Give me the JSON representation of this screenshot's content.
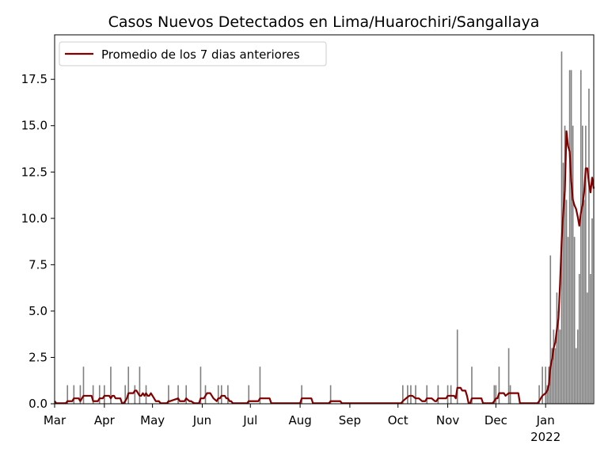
{
  "chart_data": {
    "type": "bar",
    "title": "Casos Nuevos Detectados en Lima/Huarochiri/Sangallaya",
    "xlabel": "",
    "ylabel": "",
    "x_range": [
      "2021-03-01",
      "2022-01-31"
    ],
    "ylim": [
      0,
      19.9
    ],
    "grid": false,
    "legend_placement": "top-left",
    "yticks": [
      {
        "value": 0.0,
        "label": "0.0"
      },
      {
        "value": 2.5,
        "label": "2.5"
      },
      {
        "value": 5.0,
        "label": "5.0"
      },
      {
        "value": 7.5,
        "label": "7.5"
      },
      {
        "value": 10.0,
        "label": "10.0"
      },
      {
        "value": 12.5,
        "label": "12.5"
      },
      {
        "value": 15.0,
        "label": "15.0"
      },
      {
        "value": 17.5,
        "label": "17.5"
      }
    ],
    "xticks": [
      {
        "date": "2021-03-01",
        "label": "Mar"
      },
      {
        "date": "2021-04-01",
        "label": "Apr"
      },
      {
        "date": "2021-05-01",
        "label": "May"
      },
      {
        "date": "2021-06-01",
        "label": "Jun"
      },
      {
        "date": "2021-07-01",
        "label": "Jul"
      },
      {
        "date": "2021-08-01",
        "label": "Aug"
      },
      {
        "date": "2021-09-01",
        "label": "Sep"
      },
      {
        "date": "2021-10-01",
        "label": "Oct"
      },
      {
        "date": "2021-11-01",
        "label": "Nov"
      },
      {
        "date": "2021-12-01",
        "label": "Dec"
      },
      {
        "date": "2022-01-01",
        "label": "Jan",
        "sublabel": "2022"
      }
    ],
    "colors": {
      "bars": "#808080",
      "line": "#800000"
    },
    "series": [
      {
        "type": "bar",
        "points": [
          [
            "2021-03-09",
            1
          ],
          [
            "2021-03-13",
            1
          ],
          [
            "2021-03-17",
            1
          ],
          [
            "2021-03-19",
            2
          ],
          [
            "2021-03-25",
            1
          ],
          [
            "2021-03-29",
            1
          ],
          [
            "2021-04-01",
            1
          ],
          [
            "2021-04-05",
            2
          ],
          [
            "2021-04-14",
            1
          ],
          [
            "2021-04-16",
            2
          ],
          [
            "2021-04-20",
            1
          ],
          [
            "2021-04-23",
            2
          ],
          [
            "2021-04-27",
            1
          ],
          [
            "2021-05-11",
            1
          ],
          [
            "2021-05-17",
            1
          ],
          [
            "2021-05-22",
            1
          ],
          [
            "2021-05-31",
            2
          ],
          [
            "2021-06-03",
            1
          ],
          [
            "2021-06-11",
            1
          ],
          [
            "2021-06-13",
            1
          ],
          [
            "2021-06-17",
            1
          ],
          [
            "2021-06-30",
            1
          ],
          [
            "2021-07-07",
            2
          ],
          [
            "2021-08-02",
            1
          ],
          [
            "2021-08-20",
            1
          ],
          [
            "2021-10-04",
            1
          ],
          [
            "2021-10-07",
            1
          ],
          [
            "2021-10-09",
            1
          ],
          [
            "2021-10-12",
            1
          ],
          [
            "2021-10-19",
            1
          ],
          [
            "2021-10-26",
            1
          ],
          [
            "2021-11-01",
            1
          ],
          [
            "2021-11-03",
            1
          ],
          [
            "2021-11-07",
            4
          ],
          [
            "2021-11-16",
            2
          ],
          [
            "2021-11-30",
            1
          ],
          [
            "2021-12-01",
            1
          ],
          [
            "2021-12-03",
            2
          ],
          [
            "2021-12-09",
            3
          ],
          [
            "2021-12-10",
            1
          ],
          [
            "2021-12-28",
            1
          ],
          [
            "2021-12-30",
            2
          ],
          [
            "2022-01-01",
            2
          ],
          [
            "2022-01-02",
            1
          ],
          [
            "2022-01-03",
            2
          ],
          [
            "2022-01-04",
            8
          ],
          [
            "2022-01-05",
            3
          ],
          [
            "2022-01-06",
            4
          ],
          [
            "2022-01-07",
            3
          ],
          [
            "2022-01-08",
            6
          ],
          [
            "2022-01-09",
            5
          ],
          [
            "2022-01-10",
            4
          ],
          [
            "2022-01-11",
            19
          ],
          [
            "2022-01-12",
            13
          ],
          [
            "2022-01-13",
            15
          ],
          [
            "2022-01-14",
            11
          ],
          [
            "2022-01-15",
            9
          ],
          [
            "2022-01-16",
            18
          ],
          [
            "2022-01-17",
            18
          ],
          [
            "2022-01-18",
            15
          ],
          [
            "2022-01-19",
            9
          ],
          [
            "2022-01-20",
            3
          ],
          [
            "2022-01-21",
            4
          ],
          [
            "2022-01-22",
            7
          ],
          [
            "2022-01-23",
            18
          ],
          [
            "2022-01-24",
            15
          ],
          [
            "2022-01-25",
            11
          ],
          [
            "2022-01-26",
            15
          ],
          [
            "2022-01-27",
            6
          ],
          [
            "2022-01-28",
            17
          ],
          [
            "2022-01-29",
            7
          ],
          [
            "2022-01-30",
            10
          ]
        ]
      },
      {
        "type": "line",
        "name": "Promedio de los 7 dias anteriores",
        "points": [
          [
            "2021-03-01",
            0.14
          ],
          [
            "2021-03-02",
            0.03
          ],
          [
            "2021-03-08",
            0.03
          ],
          [
            "2021-03-09",
            0.14
          ],
          [
            "2021-03-12",
            0.14
          ],
          [
            "2021-03-13",
            0.29
          ],
          [
            "2021-03-16",
            0.29
          ],
          [
            "2021-03-17",
            0.14
          ],
          [
            "2021-03-18",
            0.29
          ],
          [
            "2021-03-19",
            0.43
          ],
          [
            "2021-03-24",
            0.43
          ],
          [
            "2021-03-25",
            0.14
          ],
          [
            "2021-03-28",
            0.14
          ],
          [
            "2021-03-29",
            0.29
          ],
          [
            "2021-03-31",
            0.29
          ],
          [
            "2021-04-01",
            0.43
          ],
          [
            "2021-04-04",
            0.43
          ],
          [
            "2021-04-05",
            0.29
          ],
          [
            "2021-04-06",
            0.43
          ],
          [
            "2021-04-07",
            0.43
          ],
          [
            "2021-04-08",
            0.29
          ],
          [
            "2021-04-11",
            0.29
          ],
          [
            "2021-04-12",
            0.03
          ],
          [
            "2021-04-13",
            0.03
          ],
          [
            "2021-04-14",
            0.14
          ],
          [
            "2021-04-15",
            0.29
          ],
          [
            "2021-04-16",
            0.57
          ],
          [
            "2021-04-19",
            0.57
          ],
          [
            "2021-04-20",
            0.71
          ],
          [
            "2021-04-21",
            0.71
          ],
          [
            "2021-04-22",
            0.57
          ],
          [
            "2021-04-23",
            0.43
          ],
          [
            "2021-04-24",
            0.43
          ],
          [
            "2021-04-25",
            0.57
          ],
          [
            "2021-04-26",
            0.43
          ],
          [
            "2021-04-27",
            0.57
          ],
          [
            "2021-04-28",
            0.43
          ],
          [
            "2021-04-29",
            0.43
          ],
          [
            "2021-04-30",
            0.57
          ],
          [
            "2021-05-01",
            0.43
          ],
          [
            "2021-05-02",
            0.29
          ],
          [
            "2021-05-03",
            0.14
          ],
          [
            "2021-05-05",
            0.14
          ],
          [
            "2021-05-06",
            0.03
          ],
          [
            "2021-05-10",
            0.03
          ],
          [
            "2021-05-11",
            0.14
          ],
          [
            "2021-05-12",
            0.14
          ],
          [
            "2021-05-17",
            0.29
          ],
          [
            "2021-05-18",
            0.14
          ],
          [
            "2021-05-21",
            0.14
          ],
          [
            "2021-05-22",
            0.29
          ],
          [
            "2021-05-24",
            0.14
          ],
          [
            "2021-05-25",
            0.14
          ],
          [
            "2021-05-27",
            0.03
          ],
          [
            "2021-05-30",
            0.03
          ],
          [
            "2021-05-31",
            0.29
          ],
          [
            "2021-06-02",
            0.29
          ],
          [
            "2021-06-03",
            0.43
          ],
          [
            "2021-06-04",
            0.57
          ],
          [
            "2021-06-06",
            0.57
          ],
          [
            "2021-06-07",
            0.43
          ],
          [
            "2021-06-08",
            0.29
          ],
          [
            "2021-06-10",
            0.14
          ],
          [
            "2021-06-11",
            0.29
          ],
          [
            "2021-06-12",
            0.29
          ],
          [
            "2021-06-13",
            0.43
          ],
          [
            "2021-06-15",
            0.43
          ],
          [
            "2021-06-16",
            0.29
          ],
          [
            "2021-06-17",
            0.29
          ],
          [
            "2021-06-18",
            0.14
          ],
          [
            "2021-06-19",
            0.14
          ],
          [
            "2021-06-20",
            0.03
          ],
          [
            "2021-06-29",
            0.03
          ],
          [
            "2021-06-30",
            0.14
          ],
          [
            "2021-07-06",
            0.14
          ],
          [
            "2021-07-07",
            0.29
          ],
          [
            "2021-07-13",
            0.29
          ],
          [
            "2021-07-14",
            0.03
          ],
          [
            "2021-08-01",
            0.03
          ],
          [
            "2021-08-02",
            0.29
          ],
          [
            "2021-08-08",
            0.29
          ],
          [
            "2021-08-09",
            0.03
          ],
          [
            "2021-08-19",
            0.03
          ],
          [
            "2021-08-20",
            0.14
          ],
          [
            "2021-08-26",
            0.14
          ],
          [
            "2021-08-27",
            0.03
          ],
          [
            "2021-10-03",
            0.03
          ],
          [
            "2021-10-04",
            0.14
          ],
          [
            "2021-10-06",
            0.29
          ],
          [
            "2021-10-08",
            0.43
          ],
          [
            "2021-10-10",
            0.43
          ],
          [
            "2021-10-12",
            0.29
          ],
          [
            "2021-10-14",
            0.29
          ],
          [
            "2021-10-16",
            0.14
          ],
          [
            "2021-10-18",
            0.14
          ],
          [
            "2021-10-19",
            0.29
          ],
          [
            "2021-10-22",
            0.29
          ],
          [
            "2021-10-24",
            0.14
          ],
          [
            "2021-10-25",
            0.14
          ],
          [
            "2021-10-26",
            0.29
          ],
          [
            "2021-10-31",
            0.29
          ],
          [
            "2021-11-01",
            0.43
          ],
          [
            "2021-11-03",
            0.43
          ],
          [
            "2021-11-05",
            0.43
          ],
          [
            "2021-11-06",
            0.29
          ],
          [
            "2021-11-07",
            0.86
          ],
          [
            "2021-11-09",
            0.86
          ],
          [
            "2021-11-10",
            0.71
          ],
          [
            "2021-11-12",
            0.71
          ],
          [
            "2021-11-13",
            0.43
          ],
          [
            "2021-11-14",
            0.03
          ],
          [
            "2021-11-15",
            0.03
          ],
          [
            "2021-11-16",
            0.29
          ],
          [
            "2021-11-22",
            0.29
          ],
          [
            "2021-11-23",
            0.03
          ],
          [
            "2021-11-29",
            0.03
          ],
          [
            "2021-11-30",
            0.14
          ],
          [
            "2021-12-01",
            0.29
          ],
          [
            "2021-12-02",
            0.29
          ],
          [
            "2021-12-03",
            0.57
          ],
          [
            "2021-12-06",
            0.57
          ],
          [
            "2021-12-07",
            0.43
          ],
          [
            "2021-12-09",
            0.57
          ],
          [
            "2021-12-15",
            0.57
          ],
          [
            "2021-12-16",
            0.03
          ],
          [
            "2021-12-27",
            0.03
          ],
          [
            "2021-12-28",
            0.14
          ],
          [
            "2021-12-29",
            0.29
          ],
          [
            "2021-12-30",
            0.43
          ],
          [
            "2022-01-01",
            0.57
          ],
          [
            "2022-01-02",
            0.71
          ],
          [
            "2022-01-03",
            1.0
          ],
          [
            "2022-01-04",
            2.0
          ],
          [
            "2022-01-05",
            2.4
          ],
          [
            "2022-01-06",
            3.0
          ],
          [
            "2022-01-07",
            3.3
          ],
          [
            "2022-01-08",
            4.0
          ],
          [
            "2022-01-09",
            4.6
          ],
          [
            "2022-01-10",
            6.5
          ],
          [
            "2022-01-11",
            8.8
          ],
          [
            "2022-01-12",
            10.3
          ],
          [
            "2022-01-13",
            11.5
          ],
          [
            "2022-01-14",
            14.7
          ],
          [
            "2022-01-15",
            13.9
          ],
          [
            "2022-01-16",
            13.6
          ],
          [
            "2022-01-17",
            12.0
          ],
          [
            "2022-01-18",
            11.0
          ],
          [
            "2022-01-19",
            10.7
          ],
          [
            "2022-01-20",
            10.5
          ],
          [
            "2022-01-21",
            10.1
          ],
          [
            "2022-01-22",
            9.6
          ],
          [
            "2022-01-23",
            10.3
          ],
          [
            "2022-01-24",
            10.7
          ],
          [
            "2022-01-25",
            11.4
          ],
          [
            "2022-01-26",
            12.7
          ],
          [
            "2022-01-27",
            12.7
          ],
          [
            "2022-01-28",
            11.9
          ],
          [
            "2022-01-29",
            11.4
          ],
          [
            "2022-01-30",
            12.2
          ],
          [
            "2022-01-31",
            11.6
          ]
        ]
      }
    ]
  }
}
